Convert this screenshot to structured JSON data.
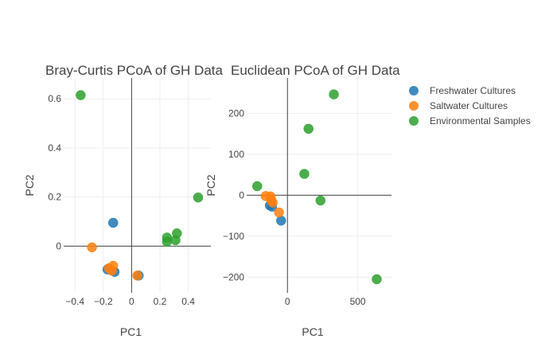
{
  "chart_data": [
    {
      "type": "scatter",
      "title": "Bray-Curtis PCoA of GH Data",
      "xlabel": "PC1",
      "ylabel": "PC2",
      "xlim": [
        -0.48,
        0.56
      ],
      "ylim": [
        -0.19,
        0.685
      ],
      "xticks": [
        -0.4,
        -0.2,
        0,
        0.2,
        0.4
      ],
      "xtick_labels": [
        "−0.4",
        "−0.2",
        "0",
        "0.2",
        "0.4"
      ],
      "yticks": [
        0,
        0.2,
        0.4,
        0.6
      ],
      "ytick_labels": [
        "0",
        "0.2",
        "0.4",
        "0.6"
      ],
      "grid": true,
      "zero_lines": true,
      "series": [
        {
          "name": "Freshwater Cultures",
          "color": "#1f77b4",
          "x": [
            -0.13,
            -0.12,
            -0.17,
            0.05
          ],
          "y": [
            0.095,
            -0.105,
            -0.095,
            -0.12
          ]
        },
        {
          "name": "Saltwater Cultures",
          "color": "#ff7f0e",
          "x": [
            -0.28,
            -0.16,
            -0.13,
            -0.14,
            0.04
          ],
          "y": [
            -0.005,
            -0.09,
            -0.08,
            -0.1,
            -0.12
          ]
        },
        {
          "name": "Environmental Samples",
          "color": "#2ca02c",
          "x": [
            -0.36,
            0.25,
            0.25,
            0.32,
            0.31,
            0.47
          ],
          "y": [
            0.615,
            0.035,
            0.018,
            0.052,
            0.024,
            0.198
          ]
        }
      ]
    },
    {
      "type": "scatter",
      "title": "Euclidean PCoA of GH Data",
      "xlabel": "PC1",
      "ylabel": "PC2",
      "xlim": [
        -290,
        740
      ],
      "ylim": [
        -238,
        286
      ],
      "xticks": [
        0,
        500
      ],
      "xtick_labels": [
        "0",
        "500"
      ],
      "yticks": [
        -200,
        -100,
        0,
        100,
        200
      ],
      "ytick_labels": [
        "−200",
        "−100",
        "0",
        "100",
        "200"
      ],
      "grid": true,
      "zero_lines": true,
      "series": [
        {
          "name": "Freshwater Cultures",
          "color": "#1f77b4",
          "x": [
            -125,
            -110,
            -45
          ],
          "y": [
            -25,
            -28,
            -62
          ]
        },
        {
          "name": "Saltwater Cultures",
          "color": "#ff7f0e",
          "x": [
            -155,
            -120,
            -105,
            -60,
            -115
          ],
          "y": [
            -2,
            -3,
            -18,
            -42,
            -12
          ]
        },
        {
          "name": "Environmental Samples",
          "color": "#2ca02c",
          "x": [
            -215,
            330,
            150,
            120,
            235,
            635
          ],
          "y": [
            22,
            246,
            162,
            52,
            -13,
            -205
          ]
        }
      ]
    }
  ],
  "legend": {
    "placement": "top-right",
    "items": [
      {
        "label": "Freshwater Cultures",
        "color": "#1f77b4"
      },
      {
        "label": "Saltwater Cultures",
        "color": "#ff7f0e"
      },
      {
        "label": "Environmental Samples",
        "color": "#2ca02c"
      }
    ]
  }
}
